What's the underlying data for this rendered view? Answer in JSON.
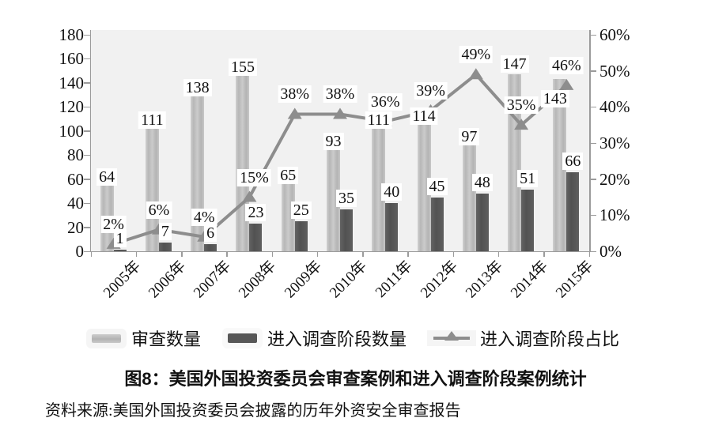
{
  "figure": {
    "title": "图8：美国外国投资委员会审查案例和进入调查阶段案例统计",
    "source": "资料来源:美国外国投资委员会披露的历年外资安全审查报告"
  },
  "chart_data": {
    "type": "bar",
    "subtype": "grouped bars with line overlay (dual axis)",
    "categories": [
      "2005年",
      "2006年",
      "2007年",
      "2008年",
      "2009年",
      "2010年",
      "2011年",
      "2012年",
      "2013年",
      "2014年",
      "2015年"
    ],
    "series": [
      {
        "name": "审查数量",
        "type": "bar",
        "axis": "left",
        "values": [
          64,
          111,
          138,
          155,
          65,
          93,
          111,
          114,
          97,
          147,
          143
        ],
        "labels": [
          "64",
          "111",
          "138",
          "155",
          "65",
          "93",
          "111",
          "114",
          "97",
          "147",
          "143"
        ]
      },
      {
        "name": "进入调查阶段数量",
        "type": "bar",
        "axis": "left",
        "values": [
          1,
          7,
          6,
          23,
          25,
          35,
          40,
          45,
          48,
          51,
          66
        ],
        "labels": [
          "1",
          "7",
          "6",
          "23",
          "25",
          "35",
          "40",
          "45",
          "48",
          "51",
          "66"
        ]
      },
      {
        "name": "进入调查阶段占比",
        "type": "line",
        "axis": "right",
        "values": [
          2,
          6,
          4,
          15,
          38,
          38,
          36,
          39,
          49,
          35,
          46
        ],
        "labels": [
          "2%",
          "6%",
          "4%",
          "15%",
          "38%",
          "38%",
          "36%",
          "39%",
          "49%",
          "35%",
          "46%"
        ]
      }
    ],
    "left_axis": {
      "min": 0,
      "max": 180,
      "step": 20,
      "ticks": [
        "180",
        "160",
        "140",
        "120",
        "100",
        "80",
        "60",
        "40",
        "20",
        "0"
      ]
    },
    "right_axis": {
      "min": 0,
      "max": 60,
      "step": 10,
      "unit": "%",
      "ticks": [
        "60%",
        "50%",
        "40%",
        "30%",
        "20%",
        "10%",
        "0%"
      ]
    },
    "grid": false,
    "legend_position": "bottom",
    "colors": {
      "light_bar": "#c1c1c1",
      "dark_bar": "#585858",
      "line": "#8d8d8d",
      "plot_bg": "#f1f1f1",
      "axis": "#9b9b9b",
      "text": "#111111",
      "label_bg": "#ffffff"
    }
  }
}
